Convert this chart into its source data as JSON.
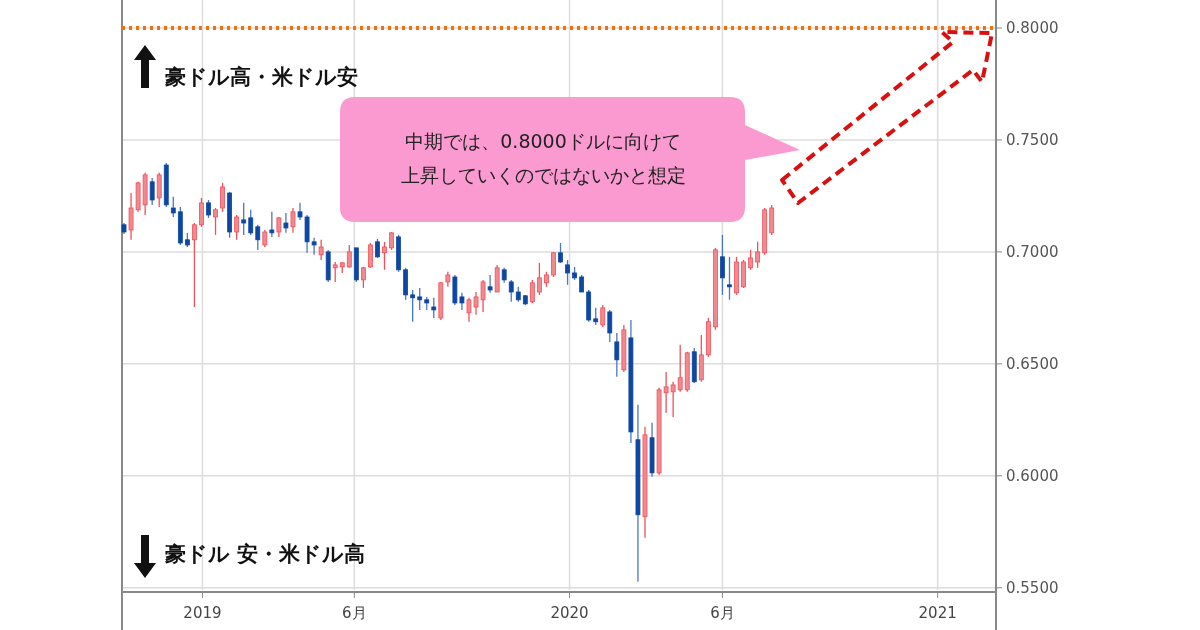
{
  "chart_data": {
    "type": "candlestick",
    "x": [
      "2018-10-15",
      "2018-10-22",
      "2018-10-29",
      "2018-11-05",
      "2018-11-12",
      "2018-11-19",
      "2018-11-26",
      "2018-12-03",
      "2018-12-10",
      "2018-12-17",
      "2018-12-24",
      "2018-12-31",
      "2019-01-07",
      "2019-01-14",
      "2019-01-21",
      "2019-01-28",
      "2019-02-04",
      "2019-02-11",
      "2019-02-18",
      "2019-02-25",
      "2019-03-04",
      "2019-03-11",
      "2019-03-18",
      "2019-03-25",
      "2019-04-01",
      "2019-04-08",
      "2019-04-15",
      "2019-04-22",
      "2019-04-29",
      "2019-05-06",
      "2019-05-13",
      "2019-05-20",
      "2019-05-27",
      "2019-06-03",
      "2019-06-10",
      "2019-06-17",
      "2019-06-24",
      "2019-07-01",
      "2019-07-08",
      "2019-07-15",
      "2019-07-22",
      "2019-07-29",
      "2019-08-05",
      "2019-08-12",
      "2019-08-19",
      "2019-08-26",
      "2019-09-02",
      "2019-09-09",
      "2019-09-16",
      "2019-09-23",
      "2019-09-30",
      "2019-10-07",
      "2019-10-14",
      "2019-10-21",
      "2019-10-28",
      "2019-11-04",
      "2019-11-11",
      "2019-11-18",
      "2019-11-25",
      "2019-12-02",
      "2019-12-09",
      "2019-12-16",
      "2019-12-23",
      "2019-12-30",
      "2020-01-06",
      "2020-01-13",
      "2020-01-20",
      "2020-01-27",
      "2020-02-03",
      "2020-02-10",
      "2020-02-17",
      "2020-02-24",
      "2020-03-02",
      "2020-03-09",
      "2020-03-16",
      "2020-03-23",
      "2020-03-30",
      "2020-04-06",
      "2020-04-13",
      "2020-04-20",
      "2020-04-27",
      "2020-05-04",
      "2020-05-11",
      "2020-05-18",
      "2020-05-25",
      "2020-06-01",
      "2020-06-08",
      "2020-06-15",
      "2020-06-22",
      "2020-06-29",
      "2020-07-06",
      "2020-07-13",
      "2020-07-20"
    ],
    "ohlc": [
      [
        0.7121,
        0.7129,
        0.708,
        0.7089
      ],
      [
        0.7098,
        0.7263,
        0.7054,
        0.7196
      ],
      [
        0.7188,
        0.7313,
        0.7179,
        0.7308
      ],
      [
        0.721,
        0.7353,
        0.7165,
        0.7344
      ],
      [
        0.7313,
        0.733,
        0.721,
        0.7232
      ],
      [
        0.7241,
        0.7353,
        0.7201,
        0.7344
      ],
      [
        0.7388,
        0.7397,
        0.7201,
        0.721
      ],
      [
        0.7196,
        0.7246,
        0.7156,
        0.7174
      ],
      [
        0.7179,
        0.7201,
        0.7031,
        0.704
      ],
      [
        0.7054,
        0.7085,
        0.7022,
        0.7031
      ],
      [
        0.7054,
        0.7129,
        0.6754,
        0.7121
      ],
      [
        0.7121,
        0.7241,
        0.7112,
        0.7219
      ],
      [
        0.7219,
        0.7232,
        0.7152,
        0.7165
      ],
      [
        0.7156,
        0.7196,
        0.7076,
        0.7188
      ],
      [
        0.7196,
        0.7308,
        0.7179,
        0.729
      ],
      [
        0.7263,
        0.7268,
        0.7063,
        0.7089
      ],
      [
        0.7089,
        0.7165,
        0.7054,
        0.7156
      ],
      [
        0.7143,
        0.7219,
        0.7076,
        0.7129
      ],
      [
        0.7152,
        0.7188,
        0.7076,
        0.7085
      ],
      [
        0.7112,
        0.7121,
        0.7009,
        0.7054
      ],
      [
        0.7031,
        0.7098,
        0.7022,
        0.7089
      ],
      [
        0.7098,
        0.7179,
        0.7067,
        0.7085
      ],
      [
        0.7089,
        0.7156,
        0.7067,
        0.7152
      ],
      [
        0.7129,
        0.7174,
        0.7085,
        0.7107
      ],
      [
        0.7112,
        0.7196,
        0.7085,
        0.7179
      ],
      [
        0.7179,
        0.7219,
        0.7143,
        0.7156
      ],
      [
        0.7156,
        0.7165,
        0.6996,
        0.7045
      ],
      [
        0.7045,
        0.7063,
        0.6987,
        0.7031
      ],
      [
        0.6987,
        0.7054,
        0.6964,
        0.7022
      ],
      [
        0.7,
        0.7009,
        0.6866,
        0.6875
      ],
      [
        0.6929,
        0.6955,
        0.6866,
        0.6942
      ],
      [
        0.6933,
        0.6955,
        0.6906,
        0.6951
      ],
      [
        0.6933,
        0.7031,
        0.6929,
        0.7
      ],
      [
        0.7018,
        0.7018,
        0.6866,
        0.6875
      ],
      [
        0.6875,
        0.6933,
        0.6839,
        0.6929
      ],
      [
        0.6933,
        0.704,
        0.6929,
        0.7031
      ],
      [
        0.7045,
        0.7058,
        0.6973,
        0.6978
      ],
      [
        0.6996,
        0.7045,
        0.692,
        0.7022
      ],
      [
        0.7018,
        0.7089,
        0.7009,
        0.7085
      ],
      [
        0.7067,
        0.7076,
        0.6911,
        0.692
      ],
      [
        0.692,
        0.6929,
        0.6786,
        0.6808
      ],
      [
        0.6808,
        0.683,
        0.6688,
        0.6795
      ],
      [
        0.6799,
        0.6839,
        0.6741,
        0.6786
      ],
      [
        0.6786,
        0.6799,
        0.6741,
        0.6772
      ],
      [
        0.6754,
        0.6795,
        0.6705,
        0.6741
      ],
      [
        0.6705,
        0.6866,
        0.6696,
        0.6862
      ],
      [
        0.6866,
        0.6911,
        0.6844,
        0.6897
      ],
      [
        0.6888,
        0.6897,
        0.6763,
        0.6772
      ],
      [
        0.6799,
        0.6817,
        0.6741,
        0.6772
      ],
      [
        0.6728,
        0.6795,
        0.6688,
        0.6786
      ],
      [
        0.6754,
        0.6821,
        0.6719,
        0.6799
      ],
      [
        0.6786,
        0.6875,
        0.6732,
        0.6866
      ],
      [
        0.6844,
        0.6897,
        0.6817,
        0.683
      ],
      [
        0.6821,
        0.6942,
        0.6821,
        0.6929
      ],
      [
        0.692,
        0.6929,
        0.6862,
        0.6875
      ],
      [
        0.6866,
        0.6875,
        0.6777,
        0.6821
      ],
      [
        0.6821,
        0.6844,
        0.6777,
        0.6786
      ],
      [
        0.6804,
        0.6808,
        0.6763,
        0.6768
      ],
      [
        0.6777,
        0.6875,
        0.6772,
        0.6862
      ],
      [
        0.6821,
        0.6951,
        0.6808,
        0.6884
      ],
      [
        0.6862,
        0.6911,
        0.6844,
        0.6897
      ],
      [
        0.6897,
        0.7,
        0.6888,
        0.6996
      ],
      [
        0.6996,
        0.704,
        0.6951,
        0.6955
      ],
      [
        0.6942,
        0.6964,
        0.6853,
        0.6906
      ],
      [
        0.6906,
        0.6933,
        0.6875,
        0.6884
      ],
      [
        0.6888,
        0.6897,
        0.6821,
        0.6821
      ],
      [
        0.6821,
        0.683,
        0.6688,
        0.6696
      ],
      [
        0.6701,
        0.675,
        0.6674,
        0.6688
      ],
      [
        0.6674,
        0.6763,
        0.6665,
        0.675
      ],
      [
        0.6732,
        0.6741,
        0.6598,
        0.6638
      ],
      [
        0.6598,
        0.6638,
        0.6442,
        0.6518
      ],
      [
        0.6473,
        0.6674,
        0.6464,
        0.6652
      ],
      [
        0.6616,
        0.6696,
        0.6147,
        0.6196
      ],
      [
        0.6161,
        0.6317,
        0.5527,
        0.5826
      ],
      [
        0.5817,
        0.6219,
        0.5723,
        0.6183
      ],
      [
        0.617,
        0.6237,
        0.5996,
        0.6013
      ],
      [
        0.6013,
        0.6393,
        0.6004,
        0.6384
      ],
      [
        0.6371,
        0.6464,
        0.6281,
        0.6397
      ],
      [
        0.6375,
        0.642,
        0.6263,
        0.6406
      ],
      [
        0.6384,
        0.6585,
        0.6375,
        0.6438
      ],
      [
        0.6384,
        0.6554,
        0.6375,
        0.6549
      ],
      [
        0.6554,
        0.6571,
        0.6415,
        0.642
      ],
      [
        0.6429,
        0.6629,
        0.642,
        0.654
      ],
      [
        0.654,
        0.6705,
        0.6531,
        0.6688
      ],
      [
        0.6665,
        0.7018,
        0.6652,
        0.7009
      ],
      [
        0.6978,
        0.7076,
        0.6808,
        0.6884
      ],
      [
        0.6853,
        0.6978,
        0.6786,
        0.6844
      ],
      [
        0.6817,
        0.6978,
        0.6808,
        0.6955
      ],
      [
        0.6844,
        0.6964,
        0.6839,
        0.6955
      ],
      [
        0.6929,
        0.7009,
        0.692,
        0.6973
      ],
      [
        0.6955,
        0.7045,
        0.6929,
        0.7
      ],
      [
        0.6996,
        0.7196,
        0.6987,
        0.7188
      ],
      [
        0.7085,
        0.721,
        0.7076,
        0.7196
      ]
    ],
    "xlim": [
      "2018-10-13",
      "2021-02-28"
    ],
    "xticks": [
      {
        "value": "2019-01-01",
        "label": "2019"
      },
      {
        "value": "2019-06-01",
        "label": "6月"
      },
      {
        "value": "2020-01-01",
        "label": "2020"
      },
      {
        "value": "2020-06-01",
        "label": "6月"
      },
      {
        "value": "2021-01-01",
        "label": "2021"
      }
    ],
    "ylim": [
      0.549,
      0.8125
    ],
    "yticks": [
      {
        "value": 0.55,
        "label": "0.5500"
      },
      {
        "value": 0.6,
        "label": "0.6000"
      },
      {
        "value": 0.65,
        "label": "0.6500"
      },
      {
        "value": 0.7,
        "label": "0.7000"
      },
      {
        "value": 0.75,
        "label": "0.7500"
      },
      {
        "value": 0.8,
        "label": "0.8000"
      }
    ],
    "grid": true,
    "ref_lines": [
      {
        "axis": "y",
        "value": 0.8,
        "color": "#f07010",
        "line_style": "dotted"
      }
    ],
    "annotations": [
      "豪ドル高・米ドル安",
      "豪ドル 安・米ドル高",
      "中期では、0.8000ドルに向けて",
      "上昇していくのではないかと想定"
    ]
  }
}
